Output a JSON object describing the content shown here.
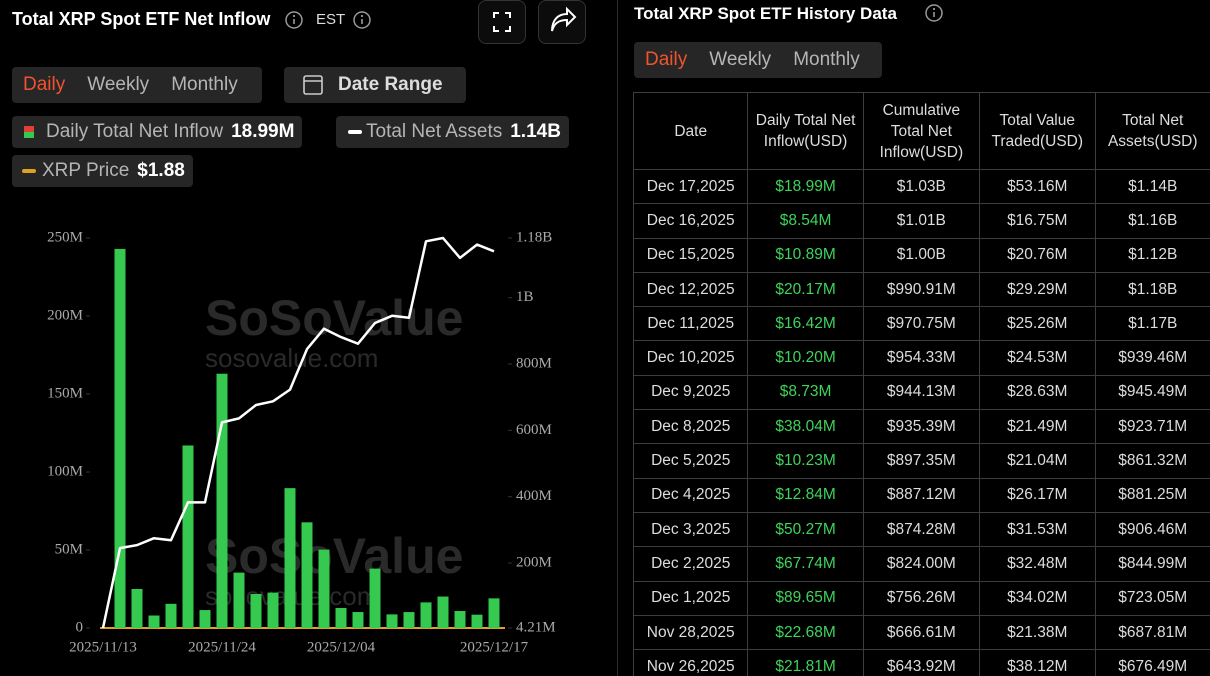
{
  "header": {
    "title": "Total XRP Spot ETF Net Inflow",
    "timezone": "EST"
  },
  "tabs": [
    "Daily",
    "Weekly",
    "Monthly"
  ],
  "date_range": "Date Range",
  "chart_data": {
    "type": "bar-line",
    "watermark": "SoSoValue",
    "watermark_url": "sosovalue.com",
    "categories": [
      "2025/11/13",
      null,
      null,
      null,
      null,
      null,
      null,
      "2025/11/24",
      null,
      null,
      null,
      null,
      null,
      null,
      "2025/12/04",
      null,
      null,
      null,
      null,
      null,
      null,
      null,
      null,
      "2025/12/17"
    ],
    "series": [
      {
        "name": "Daily Total Net Inflow",
        "latest_label": "18.99M",
        "type": "bar",
        "color": "#35c94f",
        "axis": "y",
        "values": [
          0,
          243,
          25,
          8,
          15.5,
          117,
          11.5,
          163,
          35.5,
          21.81,
          22.68,
          89.65,
          67.74,
          50.27,
          12.84,
          10.23,
          38.04,
          8.73,
          10.2,
          16.42,
          20.17,
          10.89,
          8.54,
          18.99
        ]
      },
      {
        "name": "Total Net Assets",
        "latest_label": "1.14B",
        "type": "line",
        "color": "#ffffff",
        "axis": "y2",
        "values": [
          4.21,
          245,
          254,
          275,
          269,
          383,
          383,
          624,
          636,
          676.49,
          687.81,
          723.05,
          844.99,
          906.46,
          881.25,
          861.32,
          923.71,
          945.49,
          939.46,
          1170,
          1180,
          1120,
          1160,
          1140
        ]
      },
      {
        "name": "XRP Price",
        "latest_label": "$1.88",
        "color": "#e0a020"
      }
    ],
    "ylim": [
      0,
      250
    ],
    "yticks": [
      0,
      {
        "value": 50,
        "label": "50M"
      },
      {
        "value": 100,
        "label": "100M"
      },
      {
        "value": 150,
        "label": "150M"
      },
      {
        "value": 200,
        "label": "200M"
      },
      {
        "value": 250,
        "label": "250M"
      }
    ],
    "y2lim": [
      4.21,
      1180
    ],
    "y2ticks": [
      {
        "value": 4.21,
        "label": "4.21M"
      },
      {
        "value": 200,
        "label": "200M"
      },
      {
        "value": 400,
        "label": "400M"
      },
      {
        "value": 600,
        "label": "600M"
      },
      {
        "value": 800,
        "label": "800M"
      },
      {
        "value": 1000,
        "label": "1B"
      },
      {
        "value": 1180,
        "label": "1.18B"
      }
    ]
  },
  "history": {
    "title": "Total XRP Spot ETF History Data",
    "tabs": [
      "Daily",
      "Weekly",
      "Monthly"
    ],
    "columns": [
      "Date",
      "Daily Total Net Inflow(USD)",
      "Cumulative Total Net Inflow(USD)",
      "Total Value Traded(USD)",
      "Total Net Assets(USD)"
    ],
    "rows": [
      [
        "Dec 17,2025",
        "$18.99M",
        "$1.03B",
        "$53.16M",
        "$1.14B"
      ],
      [
        "Dec 16,2025",
        "$8.54M",
        "$1.01B",
        "$16.75M",
        "$1.16B"
      ],
      [
        "Dec 15,2025",
        "$10.89M",
        "$1.00B",
        "$20.76M",
        "$1.12B"
      ],
      [
        "Dec 12,2025",
        "$20.17M",
        "$990.91M",
        "$29.29M",
        "$1.18B"
      ],
      [
        "Dec 11,2025",
        "$16.42M",
        "$970.75M",
        "$25.26M",
        "$1.17B"
      ],
      [
        "Dec 10,2025",
        "$10.20M",
        "$954.33M",
        "$24.53M",
        "$939.46M"
      ],
      [
        "Dec 9,2025",
        "$8.73M",
        "$944.13M",
        "$28.63M",
        "$945.49M"
      ],
      [
        "Dec 8,2025",
        "$38.04M",
        "$935.39M",
        "$21.49M",
        "$923.71M"
      ],
      [
        "Dec 5,2025",
        "$10.23M",
        "$897.35M",
        "$21.04M",
        "$861.32M"
      ],
      [
        "Dec 4,2025",
        "$12.84M",
        "$887.12M",
        "$26.17M",
        "$881.25M"
      ],
      [
        "Dec 3,2025",
        "$50.27M",
        "$874.28M",
        "$31.53M",
        "$906.46M"
      ],
      [
        "Dec 2,2025",
        "$67.74M",
        "$824.00M",
        "$32.48M",
        "$844.99M"
      ],
      [
        "Dec 1,2025",
        "$89.65M",
        "$756.26M",
        "$34.02M",
        "$723.05M"
      ],
      [
        "Nov 28,2025",
        "$22.68M",
        "$666.61M",
        "$21.38M",
        "$687.81M"
      ],
      [
        "Nov 26,2025",
        "$21.81M",
        "$643.92M",
        "$38.12M",
        "$676.49M"
      ]
    ]
  }
}
